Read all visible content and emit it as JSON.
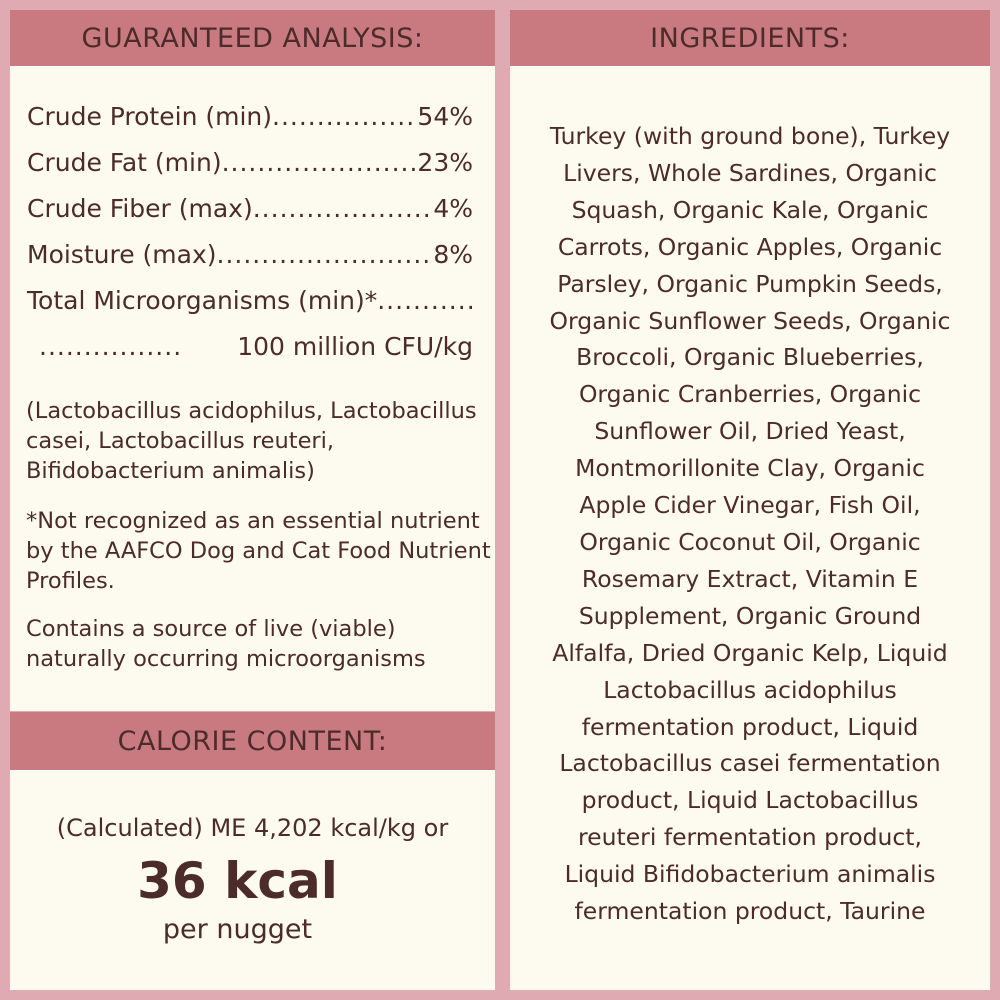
{
  "guaranteed_analysis": {
    "title": "GUARANTEED ANALYSIS:",
    "rows": [
      {
        "label": "Crude Protein (min)",
        "value": "54%"
      },
      {
        "label": "Crude Fat (min)",
        "value": "23%"
      },
      {
        "label": "Crude Fiber (max)",
        "value": "4%"
      },
      {
        "label": "Moisture (max)",
        "value": "8%"
      },
      {
        "label": "Total Microorganisms (min)*",
        "value": ""
      },
      {
        "label": "",
        "value": "100 million CFU/kg"
      }
    ],
    "strains": "(Lactobacillus acidophilus, Lactobacillus casei, Lactobacillus reuteri, Bifidobacterium animalis)",
    "footnote": "*Not recognized as an essential nutrient by the AAFCO Dog and Cat Food Nutrient Profiles.",
    "live_note": "Contains a source of live (viable) naturally occurring microorganisms"
  },
  "calorie_content": {
    "title": "CALORIE CONTENT:",
    "line1": "(Calculated) ME 4,202 kcal/kg or",
    "big": "36 kcal",
    "unit": "per nugget"
  },
  "ingredients": {
    "title": "INGREDIENTS:",
    "lines": [
      "Turkey (with ground bone), Turkey",
      "Livers,  Whole Sardines, Organic",
      "Squash, Organic Kale, Organic",
      "Carrots, Organic Apples, Organic",
      "Parsley, Organic Pumpkin Seeds,",
      "Organic Sunflower Seeds, Organic",
      "Broccoli, Organic Blueberries,",
      "Organic Cranberries, Organic",
      "Sunflower Oil, Dried Yeast,",
      "Montmorillonite Clay, Organic",
      "Apple Cider Vinegar, Fish Oil,",
      "Organic Coconut Oil, Organic",
      "Rosemary Extract, Vitamin E",
      "Supplement, Organic Ground",
      "Alfalfa, Dried Organic Kelp, Liquid",
      "Lactobacillus acidophilus",
      "fermentation product, Liquid",
      "Lactobacillus casei fermentation",
      "product, Liquid Lactobacillus",
      "reuteri fermentation product,",
      "Liquid Bifidobacterium animalis",
      "fermentation product, Taurine"
    ]
  },
  "colors": {
    "background": "#dfaab1",
    "header": "#c87a80",
    "panel": "#fdfaf0",
    "text": "#4b2c2a"
  }
}
